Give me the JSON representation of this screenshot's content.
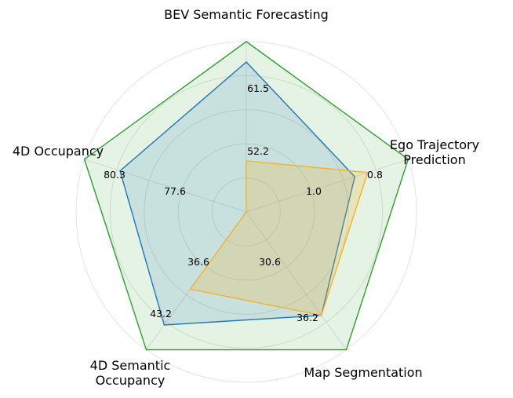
{
  "chart_data": {
    "type": "radar",
    "axes": [
      {
        "label_lines": [
          "BEV Semantic Forecasting"
        ]
      },
      {
        "label_lines": [
          "Ego Trajectory",
          "Prediction"
        ]
      },
      {
        "label_lines": [
          "Map Segmentation"
        ]
      },
      {
        "label_lines": [
          "4D Semantic",
          "Occupancy"
        ]
      },
      {
        "label_lines": [
          "4D Occupancy"
        ]
      }
    ],
    "series": [
      {
        "color": "#2ca02c",
        "fill": "#2ca02c",
        "fill_opacity": 0.12,
        "values_normalized": [
          1.0,
          1.0,
          1.0,
          1.0,
          1.0
        ],
        "value_labels": [
          "",
          "0.8",
          "36.2",
          "43.2",
          "80.3"
        ]
      },
      {
        "color": "#1f77b4",
        "fill": "#1f77b4",
        "fill_opacity": 0.15,
        "values_normalized": [
          0.88,
          0.67,
          0.75,
          0.82,
          0.78
        ],
        "value_labels": [
          "61.5",
          "",
          "",
          "",
          ""
        ]
      },
      {
        "color": "#f5b223",
        "fill": "#f5b223",
        "fill_opacity": 0.22,
        "values_normalized": [
          0.3,
          0.75,
          0.75,
          0.56,
          0.0
        ],
        "value_labels": [
          "52.2",
          "1.0",
          "30.6",
          "36.6",
          "77.6"
        ]
      }
    ],
    "grid_rings": [
      0.2,
      0.4,
      0.6,
      0.8,
      1.0
    ],
    "grid": true
  }
}
